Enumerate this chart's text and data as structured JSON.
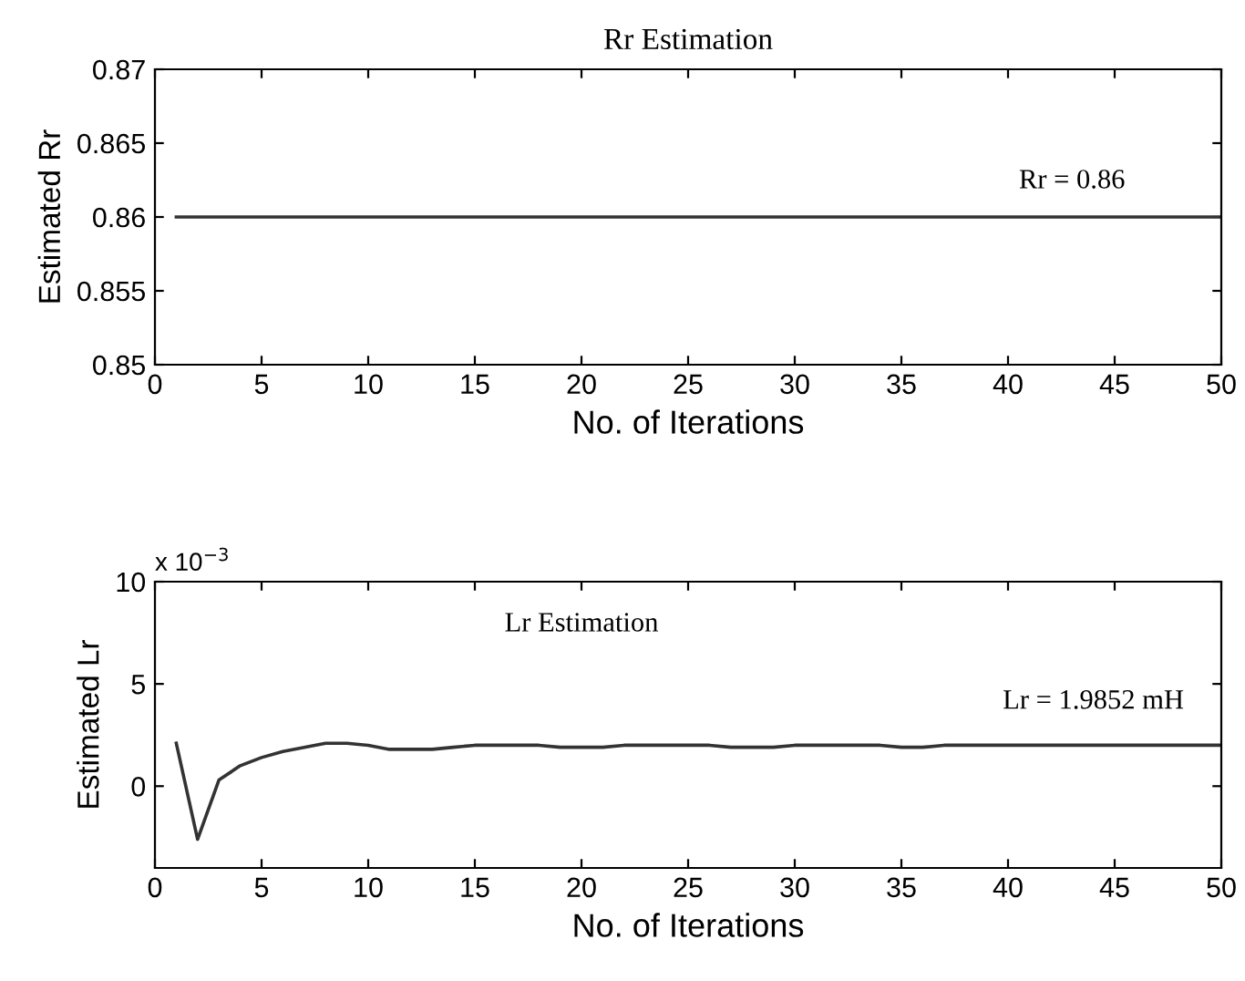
{
  "chart_data": [
    {
      "type": "line",
      "title": "Rr Estimation",
      "xlabel": "No. of Iterations",
      "ylabel": "Estimated Rr",
      "x": [
        1,
        2,
        3,
        4,
        5,
        6,
        7,
        8,
        9,
        10,
        11,
        12,
        13,
        14,
        15,
        16,
        17,
        18,
        19,
        20,
        21,
        22,
        23,
        24,
        25,
        26,
        27,
        28,
        29,
        30,
        31,
        32,
        33,
        34,
        35,
        36,
        37,
        38,
        39,
        40,
        41,
        42,
        43,
        44,
        45,
        46,
        47,
        48,
        49,
        50
      ],
      "series": [
        {
          "color": "#333333",
          "values": [
            0.86,
            0.86,
            0.86,
            0.86,
            0.86,
            0.86,
            0.86,
            0.86,
            0.86,
            0.86,
            0.86,
            0.86,
            0.86,
            0.86,
            0.86,
            0.86,
            0.86,
            0.86,
            0.86,
            0.86,
            0.86,
            0.86,
            0.86,
            0.86,
            0.86,
            0.86,
            0.86,
            0.86,
            0.86,
            0.86,
            0.86,
            0.86,
            0.86,
            0.86,
            0.86,
            0.86,
            0.86,
            0.86,
            0.86,
            0.86,
            0.86,
            0.86,
            0.86,
            0.86,
            0.86,
            0.86,
            0.86,
            0.86,
            0.86,
            0.86
          ]
        }
      ],
      "xlim": [
        0,
        50
      ],
      "xticks": [
        0,
        5,
        10,
        15,
        20,
        25,
        30,
        35,
        40,
        45,
        50
      ],
      "ylim": [
        0.85,
        0.87
      ],
      "yticks": [
        0.85,
        0.855,
        0.86,
        0.865,
        0.87
      ],
      "annotations": [
        "Rr = 0.86"
      ],
      "grid": false,
      "legend": false
    },
    {
      "type": "line",
      "xlabel": "No. of Iterations",
      "ylabel": "Estimated Lr",
      "x": [
        1,
        2,
        3,
        4,
        5,
        6,
        7,
        8,
        9,
        10,
        11,
        12,
        13,
        14,
        15,
        16,
        17,
        18,
        19,
        20,
        21,
        22,
        23,
        24,
        25,
        26,
        27,
        28,
        29,
        30,
        31,
        32,
        33,
        34,
        35,
        36,
        37,
        38,
        39,
        40,
        41,
        42,
        43,
        44,
        45,
        46,
        47,
        48,
        49,
        50
      ],
      "series": [
        {
          "color": "#333333",
          "values": [
            2.1,
            -2.6,
            0.3,
            1.0,
            1.4,
            1.7,
            1.9,
            2.1,
            2.1,
            2.0,
            1.8,
            1.8,
            1.8,
            1.9,
            2.0,
            2.0,
            2.0,
            2.0,
            1.9,
            1.9,
            1.9,
            2.0,
            2.0,
            2.0,
            2.0,
            2.0,
            1.9,
            1.9,
            1.9,
            2.0,
            2.0,
            2.0,
            2.0,
            2.0,
            1.9,
            1.9,
            2.0,
            2.0,
            2.0,
            2.0,
            2.0,
            2.0,
            2.0,
            2.0,
            2.0,
            2.0,
            2.0,
            2.0,
            2.0,
            2.0
          ]
        }
      ],
      "xlim": [
        0,
        50
      ],
      "xticks": [
        0,
        5,
        10,
        15,
        20,
        25,
        30,
        35,
        40,
        45,
        50
      ],
      "ylim": [
        -4,
        10
      ],
      "yticks": [
        0,
        5,
        10
      ],
      "annotations": [
        "x 10$^{−3}$",
        "Lr Estimation",
        "Lr = 1.9852 mH"
      ],
      "grid": false,
      "legend": false
    }
  ]
}
